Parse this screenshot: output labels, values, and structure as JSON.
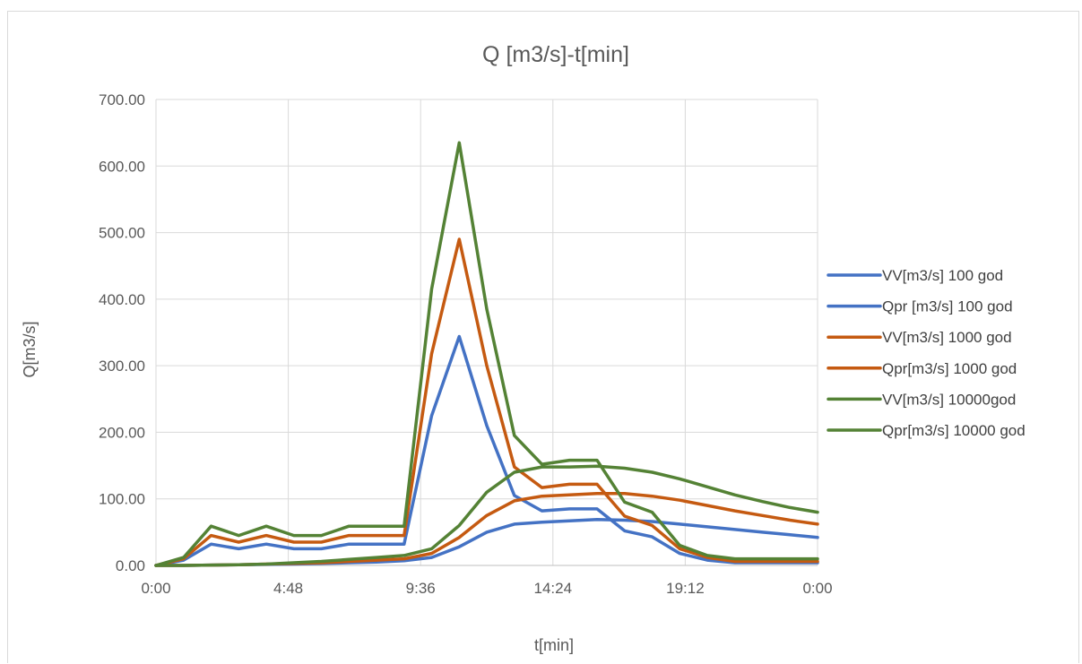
{
  "chart_data": {
    "type": "line",
    "title": "Q [m3/s]-t[min]",
    "xlabel": "t[min]",
    "ylabel": "Q[m3/s]",
    "x_unit": "minutes",
    "xlim": [
      0,
      1440
    ],
    "ylim": [
      0,
      700
    ],
    "x_ticks": [
      0,
      288,
      576,
      864,
      1152,
      1440
    ],
    "x_tick_labels": [
      "0:00",
      "4:48",
      "9:36",
      "14:24",
      "19:12",
      "0:00"
    ],
    "y_ticks": [
      0,
      100,
      200,
      300,
      400,
      500,
      600,
      700
    ],
    "y_tick_labels": [
      "0.00",
      "100.00",
      "200.00",
      "300.00",
      "400.00",
      "500.00",
      "600.00",
      "700.00"
    ],
    "grid": true,
    "legend_position": "right",
    "series": [
      {
        "name": "VV[m3/s] 100 god",
        "color": "#4472c4",
        "x": [
          0,
          60,
          120,
          180,
          240,
          300,
          360,
          420,
          480,
          540,
          600,
          660,
          720,
          780,
          840,
          900,
          960,
          1020,
          1080,
          1140,
          1200,
          1260,
          1320,
          1380,
          1440
        ],
        "y": [
          0,
          8,
          32,
          25,
          32,
          25,
          25,
          32,
          32,
          32,
          225,
          344,
          210,
          105,
          82,
          85,
          85,
          52,
          43,
          18,
          8,
          4,
          4,
          4,
          4
        ]
      },
      {
        "name": "Qpr [m3/s] 100 god",
        "color": "#4472c4",
        "x": [
          0,
          60,
          120,
          180,
          240,
          300,
          360,
          420,
          480,
          540,
          600,
          660,
          720,
          780,
          840,
          900,
          960,
          1020,
          1080,
          1140,
          1200,
          1260,
          1320,
          1380,
          1440
        ],
        "y": [
          0,
          0,
          0.5,
          1,
          1.5,
          2,
          3,
          4,
          5,
          7,
          12,
          28,
          50,
          62,
          65,
          67,
          69,
          68,
          66,
          62,
          58,
          54,
          50,
          46,
          42
        ]
      },
      {
        "name": "VV[m3/s] 1000 god",
        "color": "#c55a11",
        "x": [
          0,
          60,
          120,
          180,
          240,
          300,
          360,
          420,
          480,
          540,
          600,
          660,
          720,
          780,
          840,
          900,
          960,
          1020,
          1080,
          1140,
          1200,
          1260,
          1320,
          1380,
          1440
        ],
        "y": [
          0,
          10,
          45,
          35,
          45,
          35,
          35,
          45,
          45,
          45,
          318,
          490,
          300,
          148,
          117,
          122,
          122,
          74,
          60,
          25,
          12,
          6,
          6,
          6,
          6
        ]
      },
      {
        "name": "Qpr[m3/s] 1000 god",
        "color": "#c55a11",
        "x": [
          0,
          60,
          120,
          180,
          240,
          300,
          360,
          420,
          480,
          540,
          600,
          660,
          720,
          780,
          840,
          900,
          960,
          1020,
          1080,
          1140,
          1200,
          1260,
          1320,
          1380,
          1440
        ],
        "y": [
          0,
          0,
          0.5,
          1,
          2,
          3,
          4,
          6,
          8,
          10,
          18,
          42,
          75,
          97,
          104,
          106,
          108,
          108,
          104,
          98,
          90,
          82,
          75,
          68,
          62
        ]
      },
      {
        "name": "VV[m3/s] 10000god",
        "color": "#548235",
        "x": [
          0,
          60,
          120,
          180,
          240,
          300,
          360,
          420,
          480,
          540,
          600,
          660,
          720,
          780,
          840,
          900,
          960,
          1020,
          1080,
          1140,
          1200,
          1260,
          1320,
          1380,
          1440
        ],
        "y": [
          0,
          12,
          59,
          45,
          59,
          45,
          45,
          59,
          59,
          59,
          415,
          635,
          385,
          195,
          152,
          158,
          158,
          95,
          80,
          30,
          15,
          10,
          10,
          10,
          10
        ]
      },
      {
        "name": "Qpr[m3/s] 10000 god",
        "color": "#548235",
        "x": [
          0,
          60,
          120,
          180,
          240,
          300,
          360,
          420,
          480,
          540,
          600,
          660,
          720,
          780,
          840,
          900,
          960,
          1020,
          1080,
          1140,
          1200,
          1260,
          1320,
          1380,
          1440
        ],
        "y": [
          0,
          0,
          0.5,
          1,
          2,
          4,
          6,
          9,
          12,
          15,
          25,
          60,
          110,
          140,
          148,
          148,
          149,
          146,
          140,
          130,
          118,
          106,
          96,
          87,
          80
        ]
      }
    ]
  }
}
